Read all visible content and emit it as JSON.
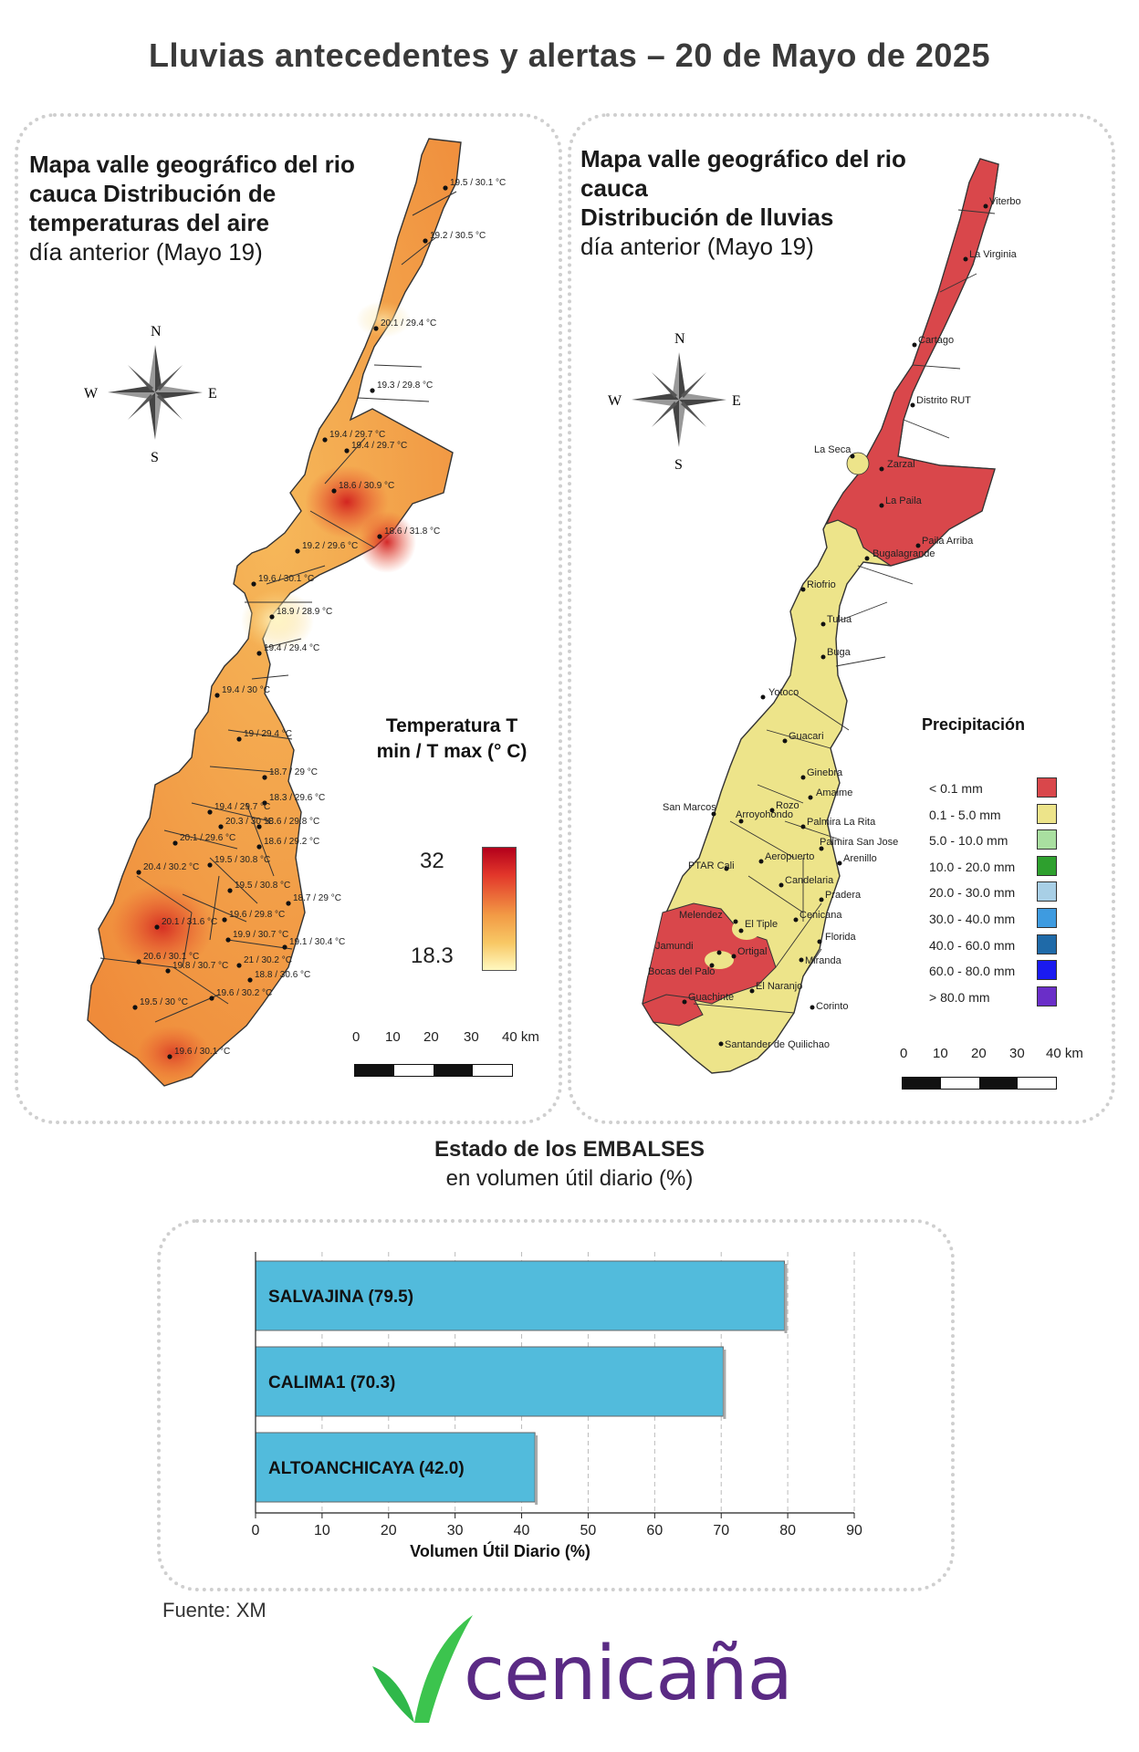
{
  "header": {
    "title": "Lluvias antecedentes y alertas – 20 de Mayo de 2025"
  },
  "temperature_map": {
    "heading_bold": "Mapa valle geográfico del rio cauca Distribución de temperaturas del aire",
    "heading_sub": "día anterior (Mayo 19)",
    "compass": {
      "n": "N",
      "s": "S",
      "e": "E",
      "w": "W"
    },
    "legend": {
      "title": "Temperatura T min / T max (° C)",
      "max": "32",
      "min": "18.3"
    },
    "scale": [
      "0",
      "10",
      "20",
      "30",
      "40 km"
    ],
    "stations": [
      "19.5 / 30.1 °C",
      "19.2 / 30.5 °C",
      "20.1 / 29.4 °C",
      "19.3 / 29.8 °C",
      "19.4 / 29.7 °C",
      "19.4 / 29.7 °C",
      "18.6 / 30.9 °C",
      "18.6 / 31.8 °C",
      "19.2 / 29.6 °C",
      "19.6 / 30.1 °C",
      "18.9 / 28.9 °C",
      "19.4 / 29.4 °C",
      "19.4 / 30 °C",
      "19 / 29.4 °C",
      "18.7 / 29 °C",
      "18.3 / 29.6 °C",
      "19.4 / 29.7 °C",
      "20.3 / 30 °C",
      "18.6 / 29.8 °C",
      "20.1 / 29.6 °C",
      "18.6 / 29.2 °C",
      "19.5 / 30.8 °C",
      "20.4 / 30.2 °C",
      "19.5 / 30.8 °C",
      "18.7 / 29 °C",
      "20.1 / 31.6 °C",
      "19.6 / 29.8 °C",
      "19.9 / 30.7 °C",
      "19.1 / 30.4 °C",
      "20.6 / 30.1 °C",
      "21 / 30.2 °C",
      "19.8 / 30.7 °C",
      "18.8 / 30.6 °C",
      "19.6 / 30.2 °C",
      "19.5 / 30 °C",
      "19.6 / 30.1 °C"
    ]
  },
  "rain_map": {
    "heading_line1": "Mapa valle geográfico del rio cauca",
    "heading_bold": "Distribución de lluvias",
    "heading_sub": "día anterior (Mayo 19)",
    "compass": {
      "n": "N",
      "s": "S",
      "e": "E",
      "w": "W"
    },
    "legend": {
      "title": "Precipitación",
      "items": [
        {
          "label": "< 0.1 mm",
          "color": "#d9474b"
        },
        {
          "label": "0.1 - 5.0 mm",
          "color": "#ede48a"
        },
        {
          "label": "5.0 - 10.0 mm",
          "color": "#a9dfa0"
        },
        {
          "label": "10.0 - 20.0 mm",
          "color": "#2ea02e"
        },
        {
          "label": "20.0 - 30.0 mm",
          "color": "#a8cfe6"
        },
        {
          "label": "30.0 - 40.0 mm",
          "color": "#3e9be0"
        },
        {
          "label": "40.0 - 60.0 mm",
          "color": "#1f6aa8"
        },
        {
          "label": "60.0 - 80.0 mm",
          "color": "#1a1af0"
        },
        {
          "label": "> 80.0 mm",
          "color": "#6a2ec8"
        }
      ]
    },
    "scale": [
      "0",
      "10",
      "20",
      "30",
      "40 km"
    ],
    "cities": [
      "Viterbo",
      "La Virginia",
      "Cartago",
      "Distrito RUT",
      "La Seca",
      "Zarzal",
      "La Paila",
      "Paila Arriba",
      "Bugalagrande",
      "Riofrio",
      "Tulua",
      "Buga",
      "Yotoco",
      "Guacari",
      "Ginebra",
      "Amaime",
      "San Marcos",
      "Rozo",
      "Palmira La Rita",
      "Arroyohondo",
      "Palmira San Jose",
      "Aeropuerto",
      "Arenillo",
      "PTAR Cali",
      "Candelaria",
      "Pradera",
      "Cenicana",
      "Melendez",
      "El Tiple",
      "Florida",
      "Jamundi",
      "Bocas del Palo",
      "Ortigal",
      "Miranda",
      "El Naranjo",
      "Guachinte",
      "Corinto",
      "Santander de Quilichao"
    ]
  },
  "reservoirs": {
    "heading_bold": "Estado de los EMBALSES",
    "heading_sub": "en volumen útil diario (%)",
    "chart_data": {
      "type": "bar",
      "orientation": "horizontal",
      "categories": [
        "SALVAJINA (79.5)",
        "CALIMA1 (70.3)",
        "ALTOANCHICAYA (42.0)"
      ],
      "values": [
        79.5,
        70.3,
        42.0
      ],
      "xlabel": "Volumen Útil Diario (%)",
      "xlim": [
        0,
        90
      ],
      "xticks": [
        "0",
        "10",
        "20",
        "30",
        "40",
        "50",
        "60",
        "70",
        "80",
        "90"
      ],
      "grid": true,
      "bar_color": "#52bbdc"
    }
  },
  "footer": {
    "source": "Fuente: XM",
    "logo_text": "cenicaña"
  }
}
